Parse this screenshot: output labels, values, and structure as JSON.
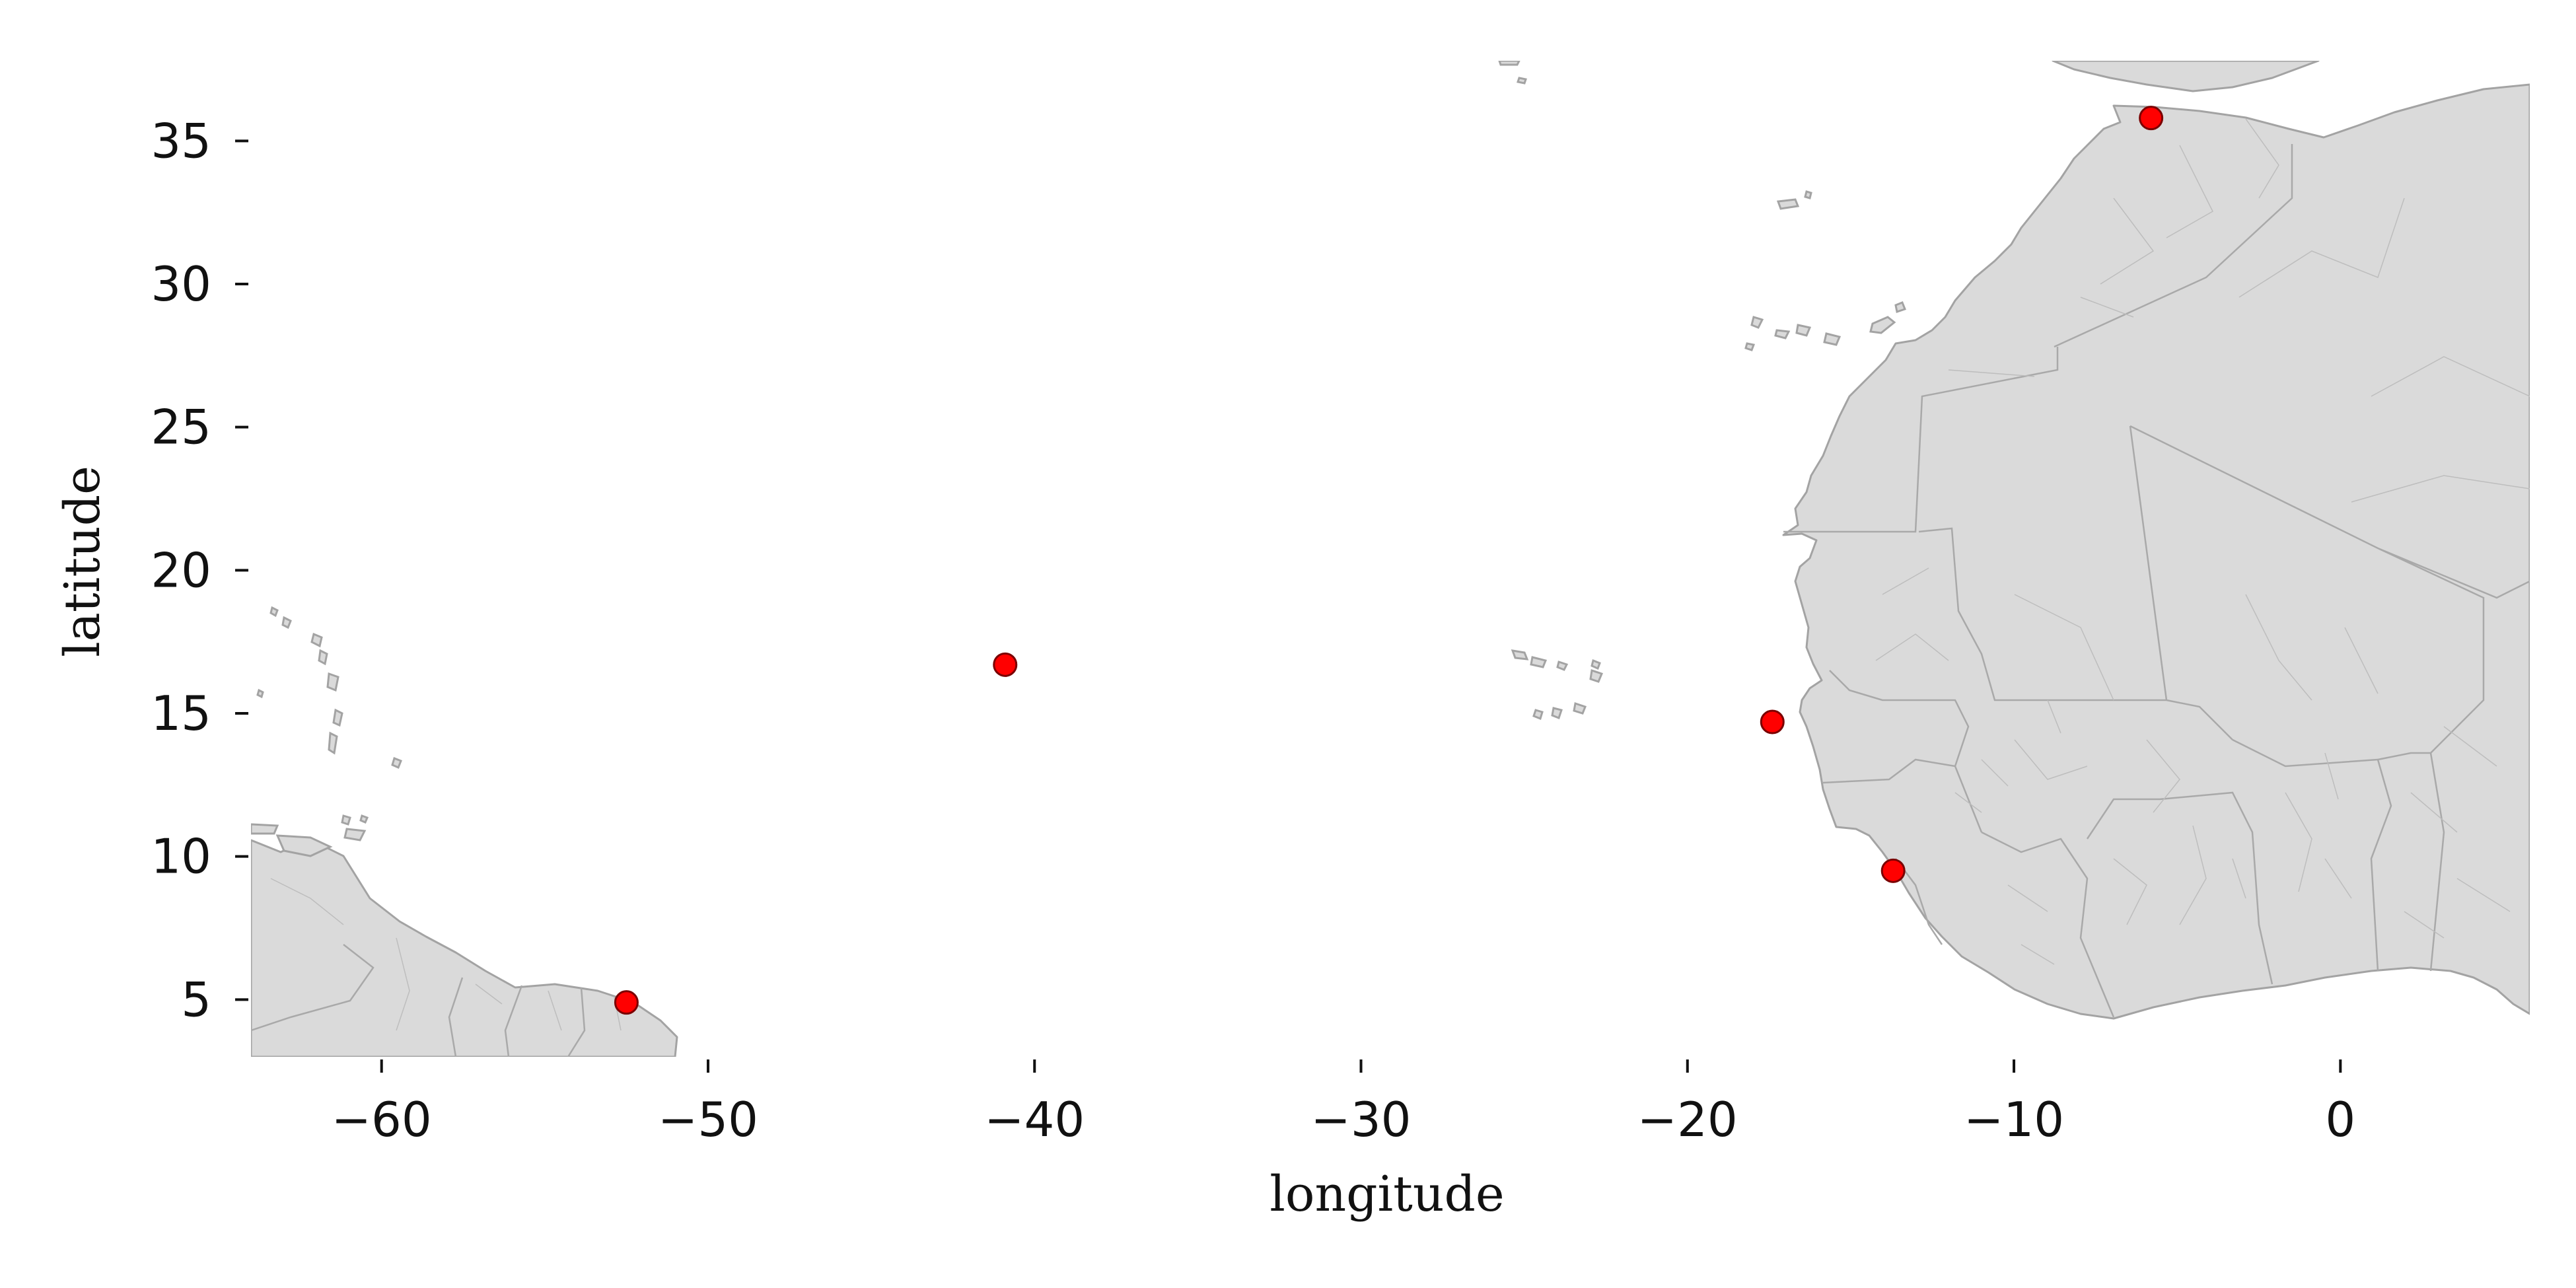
{
  "chart_data": {
    "type": "scatter",
    "xlabel": "longitude",
    "ylabel": "latitude",
    "xlim": [
      -64.0,
      5.8
    ],
    "ylim": [
      3.0,
      37.8
    ],
    "xticks": [
      -60,
      -50,
      -40,
      -30,
      -20,
      -10,
      0
    ],
    "yticks": [
      5,
      10,
      15,
      20,
      25,
      30,
      35
    ],
    "xtick_labels": [
      "−60",
      "−50",
      "−40",
      "−30",
      "−20",
      "−10",
      "0"
    ],
    "ytick_labels": [
      "5",
      "10",
      "15",
      "20",
      "25",
      "30",
      "35"
    ],
    "grid": false,
    "marker_color": "#ff0000",
    "land_color": "#dadada",
    "border_color": "#a3a3a3",
    "points": [
      {
        "x": -52.5,
        "y": 4.9
      },
      {
        "x": -40.9,
        "y": 16.7
      },
      {
        "x": -17.4,
        "y": 14.7
      },
      {
        "x": -13.7,
        "y": 9.5
      },
      {
        "x": -5.8,
        "y": 35.8
      }
    ]
  }
}
